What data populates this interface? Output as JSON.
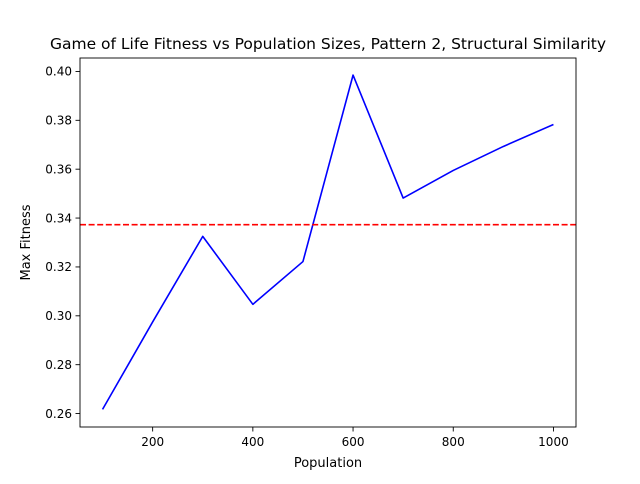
{
  "chart_data": {
    "type": "line",
    "title": "Game of Life Fitness vs Population Sizes, Pattern 2, Structural Similarity",
    "xlabel": "Population",
    "ylabel": "Max Fitness",
    "xlim": [
      55,
      1045
    ],
    "ylim": [
      0.2545,
      0.4055
    ],
    "x_ticks": [
      200,
      400,
      600,
      800,
      1000
    ],
    "y_ticks": [
      0.26,
      0.28,
      0.3,
      0.32,
      0.34,
      0.36,
      0.38,
      0.4
    ],
    "x_tick_labels": [
      "200",
      "400",
      "600",
      "800",
      "1000"
    ],
    "y_tick_labels": [
      "0.26",
      "0.28",
      "0.30",
      "0.32",
      "0.34",
      "0.36",
      "0.38",
      "0.40"
    ],
    "grid": false,
    "series": [
      {
        "color": "#0000ff",
        "style": "solid",
        "x": [
          100,
          200,
          300,
          400,
          500,
          600,
          700,
          800,
          900,
          1000
        ],
        "values": [
          0.2617,
          0.2975,
          0.3325,
          0.3047,
          0.3222,
          0.3985,
          0.3482,
          0.3595,
          0.3693,
          0.3783
        ]
      }
    ],
    "reference_lines": [
      {
        "orientation": "horizontal",
        "y": 0.3373,
        "color": "#ff0000",
        "style": "dashed"
      }
    ]
  }
}
